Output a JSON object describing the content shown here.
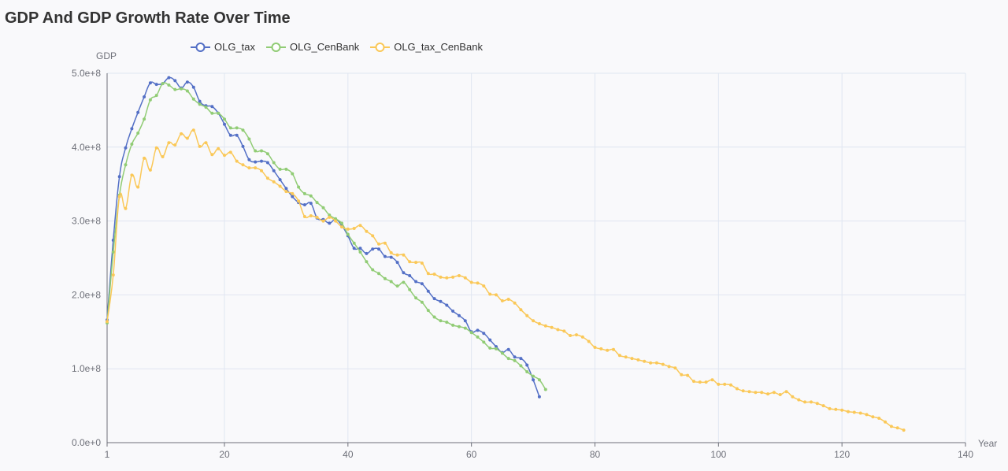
{
  "colors": {
    "background": "#f9f9fb",
    "grid": "#e0e6f1",
    "axis": "#6e7079"
  },
  "chart_data": {
    "type": "line",
    "title": "GDP And GDP Growth Rate Over Time",
    "xlabel": "Year",
    "ylabel": "GDP",
    "xlim": [
      1,
      140
    ],
    "ylim": [
      0,
      500000000
    ],
    "x_ticks": [
      1,
      20,
      40,
      60,
      80,
      100,
      120,
      140
    ],
    "x_tick_labels": [
      "1",
      "20",
      "40",
      "60",
      "80",
      "100",
      "120",
      "140"
    ],
    "y_ticks": [
      0,
      100000000,
      200000000,
      300000000,
      400000000,
      500000000
    ],
    "y_tick_labels": [
      "0.0e+0",
      "1.0e+8",
      "2.0e+8",
      "3.0e+8",
      "4.0e+8",
      "5.0e+8"
    ],
    "grid": true,
    "legend_position": "top-left",
    "series": [
      {
        "name": "OLG_tax",
        "color": "#5470c6",
        "x_start": 1,
        "values": [
          166000000,
          274000000,
          360000000,
          399000000,
          425000000,
          447000000,
          468000000,
          487000000,
          485000000,
          486000000,
          494000000,
          490000000,
          480000000,
          488000000,
          481000000,
          462000000,
          456000000,
          455000000,
          446000000,
          431000000,
          416000000,
          416000000,
          401000000,
          383000000,
          380000000,
          381000000,
          379000000,
          368000000,
          356000000,
          344000000,
          333000000,
          325000000,
          322000000,
          324000000,
          304000000,
          302000000,
          297000000,
          302000000,
          294000000,
          280000000,
          263000000,
          263000000,
          256000000,
          262000000,
          262000000,
          252000000,
          251000000,
          244000000,
          230000000,
          226000000,
          218000000,
          215000000,
          205000000,
          195000000,
          191000000,
          186000000,
          178000000,
          172000000,
          165000000,
          150000000,
          152000000,
          148000000,
          139000000,
          130000000,
          122000000,
          126000000,
          116000000,
          114000000,
          105000000,
          85000000,
          62000000
        ]
      },
      {
        "name": "OLG_CenBank",
        "color": "#91cc75",
        "x_start": 1,
        "values": [
          162000000,
          258000000,
          335000000,
          376000000,
          404000000,
          419000000,
          438000000,
          464000000,
          470000000,
          486000000,
          484000000,
          478000000,
          479000000,
          476000000,
          465000000,
          458000000,
          454000000,
          446000000,
          446000000,
          438000000,
          426000000,
          426000000,
          423000000,
          411000000,
          395000000,
          395000000,
          391000000,
          379000000,
          370000000,
          370000000,
          364000000,
          346000000,
          337000000,
          334000000,
          325000000,
          318000000,
          308000000,
          303000000,
          297000000,
          282000000,
          270000000,
          258000000,
          245000000,
          234000000,
          229000000,
          222000000,
          218000000,
          212000000,
          217000000,
          207000000,
          196000000,
          190000000,
          179000000,
          170000000,
          165000000,
          163000000,
          159000000,
          157000000,
          155000000,
          149000000,
          143000000,
          136000000,
          128000000,
          127000000,
          121000000,
          114000000,
          111000000,
          104000000,
          96000000,
          90000000,
          85000000,
          72000000
        ]
      },
      {
        "name": "OLG_tax_CenBank",
        "color": "#fac858",
        "x_start": 1,
        "values": [
          164000000,
          227000000,
          333000000,
          317000000,
          362000000,
          346000000,
          385000000,
          369000000,
          399000000,
          387000000,
          406000000,
          403000000,
          418000000,
          412000000,
          423000000,
          401000000,
          406000000,
          390000000,
          398000000,
          389000000,
          393000000,
          381000000,
          376000000,
          372000000,
          372000000,
          368000000,
          358000000,
          353000000,
          347000000,
          340000000,
          337000000,
          327000000,
          306000000,
          307000000,
          305000000,
          300000000,
          305000000,
          300000000,
          292000000,
          289000000,
          290000000,
          294000000,
          286000000,
          280000000,
          269000000,
          270000000,
          257000000,
          254000000,
          254000000,
          245000000,
          244000000,
          243000000,
          229000000,
          228000000,
          224000000,
          223000000,
          224000000,
          226000000,
          223000000,
          217000000,
          216000000,
          212000000,
          201000000,
          200000000,
          192000000,
          194000000,
          189000000,
          180000000,
          172000000,
          165000000,
          161000000,
          158000000,
          156000000,
          153000000,
          151000000,
          145000000,
          146000000,
          143000000,
          137000000,
          129000000,
          127000000,
          125000000,
          126000000,
          118000000,
          116000000,
          114000000,
          112000000,
          110000000,
          108000000,
          108000000,
          106000000,
          103000000,
          101000000,
          92000000,
          91000000,
          83000000,
          82000000,
          82000000,
          85000000,
          79000000,
          79000000,
          78000000,
          73000000,
          70000000,
          69000000,
          68000000,
          68000000,
          66000000,
          68000000,
          65000000,
          69000000,
          62000000,
          58000000,
          55000000,
          55000000,
          53000000,
          50000000,
          46000000,
          45000000,
          44000000,
          42000000,
          41000000,
          40000000,
          38000000,
          35000000,
          33000000,
          28000000,
          22000000,
          20000000,
          17000000
        ]
      }
    ]
  }
}
